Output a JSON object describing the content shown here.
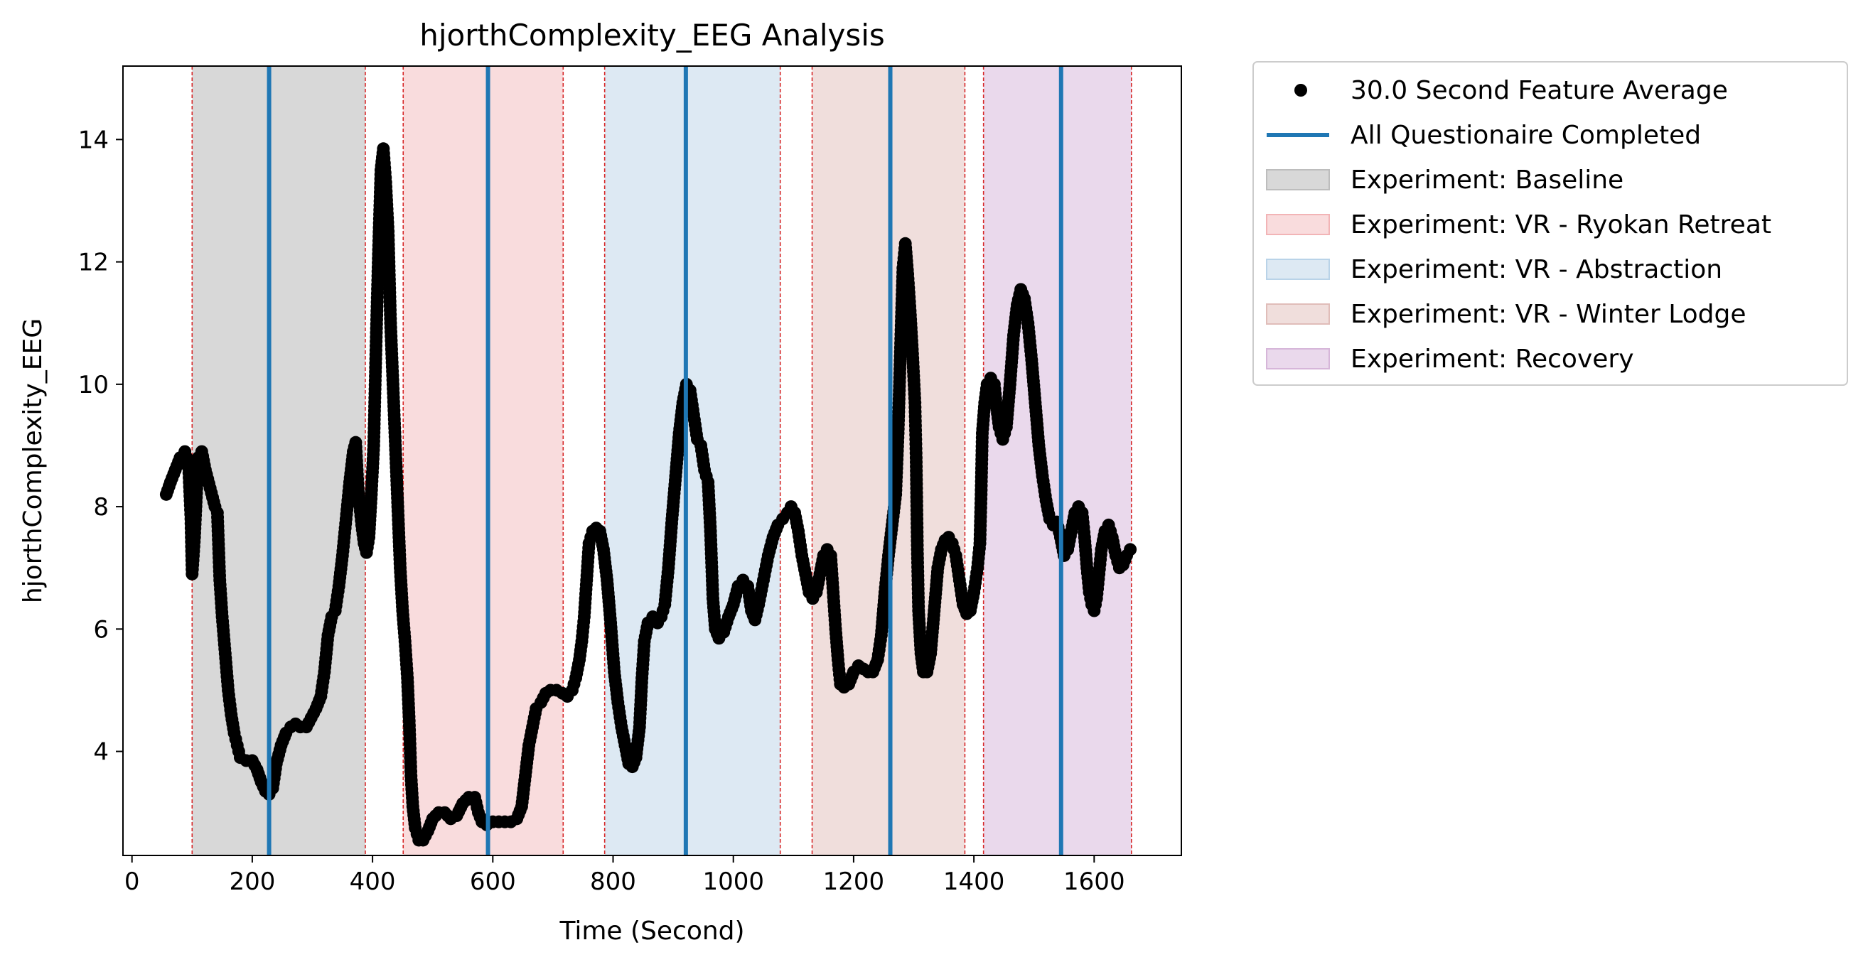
{
  "chart_data": {
    "type": "scatter",
    "title": "hjorthComplexity_EEG Analysis",
    "xlabel": "Time (Second)",
    "ylabel": "hjorthComplexity_EEG",
    "xlim": [
      -15,
      1745
    ],
    "ylim": [
      2.3,
      15.2
    ],
    "xticks": [
      0,
      200,
      400,
      600,
      800,
      1000,
      1200,
      1400,
      1600
    ],
    "yticks": [
      4,
      6,
      8,
      10,
      12,
      14
    ],
    "grid": false,
    "legend_position": "outside-upper-right",
    "legend": [
      {
        "kind": "marker",
        "label": "30.0 Second Feature Average",
        "color": "#000000"
      },
      {
        "kind": "line",
        "label": "All Questionaire Completed",
        "color": "#1f77b4"
      },
      {
        "kind": "patch",
        "label": "Experiment: Baseline",
        "color": "#d8d8d8",
        "edge": "#bdbdbd"
      },
      {
        "kind": "patch",
        "label": "Experiment: VR - Ryokan Retreat",
        "color": "#f9dcdd",
        "edge": "#f2b4b6"
      },
      {
        "kind": "patch",
        "label": "Experiment: VR - Abstraction",
        "color": "#dde9f3",
        "edge": "#b9d3e8"
      },
      {
        "kind": "patch",
        "label": "Experiment: VR - Winter Lodge",
        "color": "#f0dedc",
        "edge": "#e0bdb9"
      },
      {
        "kind": "patch",
        "label": "Experiment: Recovery",
        "color": "#ead9ec",
        "edge": "#d6b6d9"
      }
    ],
    "regions": [
      {
        "name": "Experiment: Baseline",
        "start": 100,
        "end": 388,
        "color": "#d8d8d8"
      },
      {
        "name": "Experiment: VR - Ryokan Retreat",
        "start": 451,
        "end": 717,
        "color": "#f9dcdd"
      },
      {
        "name": "Experiment: VR - Abstraction",
        "start": 786,
        "end": 1078,
        "color": "#dde9f3"
      },
      {
        "name": "Experiment: VR - Winter Lodge",
        "start": 1131,
        "end": 1385,
        "color": "#f0dedc"
      },
      {
        "name": "Experiment: Recovery",
        "start": 1416,
        "end": 1662,
        "color": "#ead9ec"
      }
    ],
    "boundary_lines": [
      100,
      388,
      451,
      717,
      786,
      1078,
      1131,
      1385,
      1416,
      1662
    ],
    "questionnaire_lines": [
      228,
      592,
      921,
      1261,
      1545
    ],
    "series": [
      {
        "name": "30.0 Second Feature Average",
        "color": "#000000",
        "points": [
          [
            57,
            8.2
          ],
          [
            64,
            8.4
          ],
          [
            72,
            8.6
          ],
          [
            80,
            8.8
          ],
          [
            88,
            8.9
          ],
          [
            94,
            8.7
          ],
          [
            98,
            7.8
          ],
          [
            100,
            6.9
          ],
          [
            104,
            7.5
          ],
          [
            110,
            8.8
          ],
          [
            116,
            8.9
          ],
          [
            122,
            8.6
          ],
          [
            130,
            8.3
          ],
          [
            138,
            8.0
          ],
          [
            142,
            7.9
          ],
          [
            146,
            6.8
          ],
          [
            150,
            6.2
          ],
          [
            155,
            5.6
          ],
          [
            160,
            5.0
          ],
          [
            165,
            4.6
          ],
          [
            170,
            4.3
          ],
          [
            175,
            4.1
          ],
          [
            180,
            3.9
          ],
          [
            190,
            3.85
          ],
          [
            200,
            3.85
          ],
          [
            208,
            3.7
          ],
          [
            215,
            3.5
          ],
          [
            222,
            3.35
          ],
          [
            228,
            3.3
          ],
          [
            234,
            3.4
          ],
          [
            240,
            3.8
          ],
          [
            248,
            4.1
          ],
          [
            256,
            4.3
          ],
          [
            264,
            4.4
          ],
          [
            272,
            4.45
          ],
          [
            280,
            4.4
          ],
          [
            290,
            4.4
          ],
          [
            298,
            4.55
          ],
          [
            306,
            4.7
          ],
          [
            314,
            4.9
          ],
          [
            320,
            5.3
          ],
          [
            326,
            5.9
          ],
          [
            332,
            6.2
          ],
          [
            338,
            6.3
          ],
          [
            344,
            6.7
          ],
          [
            350,
            7.2
          ],
          [
            356,
            7.8
          ],
          [
            362,
            8.4
          ],
          [
            368,
            8.9
          ],
          [
            372,
            9.05
          ],
          [
            376,
            8.3
          ],
          [
            382,
            7.7
          ],
          [
            386,
            7.4
          ],
          [
            390,
            7.25
          ],
          [
            394,
            7.5
          ],
          [
            398,
            8.2
          ],
          [
            402,
            9.0
          ],
          [
            406,
            10.7
          ],
          [
            410,
            12.2
          ],
          [
            414,
            13.5
          ],
          [
            418,
            13.85
          ],
          [
            422,
            13.3
          ],
          [
            426,
            12.5
          ],
          [
            430,
            11.0
          ],
          [
            434,
            10.0
          ],
          [
            438,
            9.0
          ],
          [
            442,
            8.0
          ],
          [
            446,
            7.0
          ],
          [
            450,
            6.3
          ],
          [
            454,
            5.8
          ],
          [
            458,
            5.2
          ],
          [
            461,
            4.5
          ],
          [
            464,
            3.6
          ],
          [
            467,
            3.1
          ],
          [
            471,
            2.75
          ],
          [
            477,
            2.55
          ],
          [
            484,
            2.55
          ],
          [
            492,
            2.7
          ],
          [
            500,
            2.9
          ],
          [
            510,
            3.0
          ],
          [
            520,
            3.0
          ],
          [
            530,
            2.9
          ],
          [
            540,
            2.95
          ],
          [
            550,
            3.15
          ],
          [
            560,
            3.25
          ],
          [
            570,
            3.25
          ],
          [
            576,
            3.0
          ],
          [
            582,
            2.85
          ],
          [
            590,
            2.8
          ],
          [
            600,
            2.85
          ],
          [
            610,
            2.85
          ],
          [
            620,
            2.85
          ],
          [
            630,
            2.85
          ],
          [
            640,
            2.9
          ],
          [
            648,
            3.1
          ],
          [
            654,
            3.6
          ],
          [
            660,
            4.1
          ],
          [
            666,
            4.4
          ],
          [
            672,
            4.7
          ],
          [
            680,
            4.8
          ],
          [
            688,
            4.95
          ],
          [
            696,
            5.0
          ],
          [
            706,
            5.0
          ],
          [
            716,
            4.95
          ],
          [
            724,
            4.9
          ],
          [
            732,
            5.0
          ],
          [
            738,
            5.2
          ],
          [
            744,
            5.5
          ],
          [
            748,
            5.8
          ],
          [
            752,
            6.2
          ],
          [
            756,
            6.8
          ],
          [
            760,
            7.4
          ],
          [
            766,
            7.6
          ],
          [
            772,
            7.65
          ],
          [
            778,
            7.6
          ],
          [
            784,
            7.3
          ],
          [
            790,
            6.8
          ],
          [
            796,
            6.1
          ],
          [
            802,
            5.3
          ],
          [
            808,
            4.8
          ],
          [
            814,
            4.4
          ],
          [
            820,
            4.1
          ],
          [
            826,
            3.8
          ],
          [
            832,
            3.75
          ],
          [
            838,
            3.9
          ],
          [
            844,
            4.4
          ],
          [
            848,
            5.2
          ],
          [
            852,
            5.8
          ],
          [
            858,
            6.1
          ],
          [
            866,
            6.2
          ],
          [
            874,
            6.1
          ],
          [
            880,
            6.2
          ],
          [
            886,
            6.4
          ],
          [
            892,
            7.0
          ],
          [
            898,
            7.8
          ],
          [
            904,
            8.5
          ],
          [
            910,
            9.2
          ],
          [
            916,
            9.7
          ],
          [
            922,
            10.0
          ],
          [
            928,
            9.9
          ],
          [
            934,
            9.5
          ],
          [
            940,
            9.1
          ],
          [
            946,
            9.0
          ],
          [
            952,
            8.6
          ],
          [
            958,
            8.4
          ],
          [
            962,
            7.6
          ],
          [
            966,
            6.5
          ],
          [
            970,
            6.0
          ],
          [
            976,
            5.85
          ],
          [
            984,
            5.95
          ],
          [
            992,
            6.2
          ],
          [
            1000,
            6.4
          ],
          [
            1008,
            6.7
          ],
          [
            1016,
            6.8
          ],
          [
            1024,
            6.7
          ],
          [
            1030,
            6.3
          ],
          [
            1036,
            6.15
          ],
          [
            1042,
            6.4
          ],
          [
            1050,
            6.8
          ],
          [
            1058,
            7.2
          ],
          [
            1066,
            7.5
          ],
          [
            1074,
            7.7
          ],
          [
            1082,
            7.8
          ],
          [
            1090,
            7.9
          ],
          [
            1096,
            8.0
          ],
          [
            1102,
            7.9
          ],
          [
            1108,
            7.6
          ],
          [
            1114,
            7.2
          ],
          [
            1120,
            6.9
          ],
          [
            1126,
            6.6
          ],
          [
            1132,
            6.5
          ],
          [
            1138,
            6.6
          ],
          [
            1144,
            6.9
          ],
          [
            1150,
            7.2
          ],
          [
            1156,
            7.3
          ],
          [
            1162,
            7.2
          ],
          [
            1166,
            6.6
          ],
          [
            1170,
            6.0
          ],
          [
            1174,
            5.5
          ],
          [
            1178,
            5.1
          ],
          [
            1184,
            5.05
          ],
          [
            1192,
            5.1
          ],
          [
            1200,
            5.3
          ],
          [
            1208,
            5.4
          ],
          [
            1216,
            5.35
          ],
          [
            1224,
            5.3
          ],
          [
            1232,
            5.3
          ],
          [
            1240,
            5.5
          ],
          [
            1246,
            5.9
          ],
          [
            1252,
            6.6
          ],
          [
            1258,
            7.2
          ],
          [
            1264,
            7.7
          ],
          [
            1270,
            8.2
          ],
          [
            1274,
            9.2
          ],
          [
            1278,
            10.6
          ],
          [
            1282,
            11.9
          ],
          [
            1286,
            12.3
          ],
          [
            1290,
            11.8
          ],
          [
            1294,
            11.2
          ],
          [
            1298,
            10.5
          ],
          [
            1302,
            9.7
          ],
          [
            1304,
            8.8
          ],
          [
            1306,
            7.3
          ],
          [
            1308,
            6.3
          ],
          [
            1312,
            5.6
          ],
          [
            1316,
            5.3
          ],
          [
            1322,
            5.3
          ],
          [
            1328,
            5.6
          ],
          [
            1334,
            6.3
          ],
          [
            1340,
            7.0
          ],
          [
            1346,
            7.3
          ],
          [
            1352,
            7.45
          ],
          [
            1358,
            7.5
          ],
          [
            1364,
            7.4
          ],
          [
            1370,
            7.2
          ],
          [
            1376,
            6.8
          ],
          [
            1382,
            6.4
          ],
          [
            1388,
            6.25
          ],
          [
            1394,
            6.3
          ],
          [
            1400,
            6.6
          ],
          [
            1406,
            7.0
          ],
          [
            1410,
            7.4
          ],
          [
            1412,
            8.2
          ],
          [
            1414,
            9.2
          ],
          [
            1418,
            9.7
          ],
          [
            1422,
            10.0
          ],
          [
            1428,
            10.1
          ],
          [
            1434,
            10.0
          ],
          [
            1438,
            9.6
          ],
          [
            1442,
            9.3
          ],
          [
            1448,
            9.1
          ],
          [
            1454,
            9.3
          ],
          [
            1460,
            10.0
          ],
          [
            1466,
            10.8
          ],
          [
            1472,
            11.3
          ],
          [
            1478,
            11.55
          ],
          [
            1484,
            11.4
          ],
          [
            1490,
            11.0
          ],
          [
            1496,
            10.4
          ],
          [
            1502,
            9.7
          ],
          [
            1508,
            9.0
          ],
          [
            1514,
            8.5
          ],
          [
            1520,
            8.1
          ],
          [
            1526,
            7.8
          ],
          [
            1532,
            7.7
          ],
          [
            1538,
            7.75
          ],
          [
            1544,
            7.5
          ],
          [
            1550,
            7.2
          ],
          [
            1556,
            7.3
          ],
          [
            1562,
            7.6
          ],
          [
            1568,
            7.9
          ],
          [
            1574,
            8.0
          ],
          [
            1580,
            7.9
          ],
          [
            1584,
            7.5
          ],
          [
            1588,
            7.0
          ],
          [
            1592,
            6.6
          ],
          [
            1596,
            6.4
          ],
          [
            1600,
            6.3
          ],
          [
            1604,
            6.5
          ],
          [
            1608,
            6.9
          ],
          [
            1612,
            7.3
          ],
          [
            1618,
            7.6
          ],
          [
            1624,
            7.7
          ],
          [
            1630,
            7.5
          ],
          [
            1636,
            7.2
          ],
          [
            1642,
            7.0
          ],
          [
            1648,
            7.05
          ],
          [
            1654,
            7.2
          ],
          [
            1660,
            7.3
          ]
        ]
      }
    ]
  }
}
